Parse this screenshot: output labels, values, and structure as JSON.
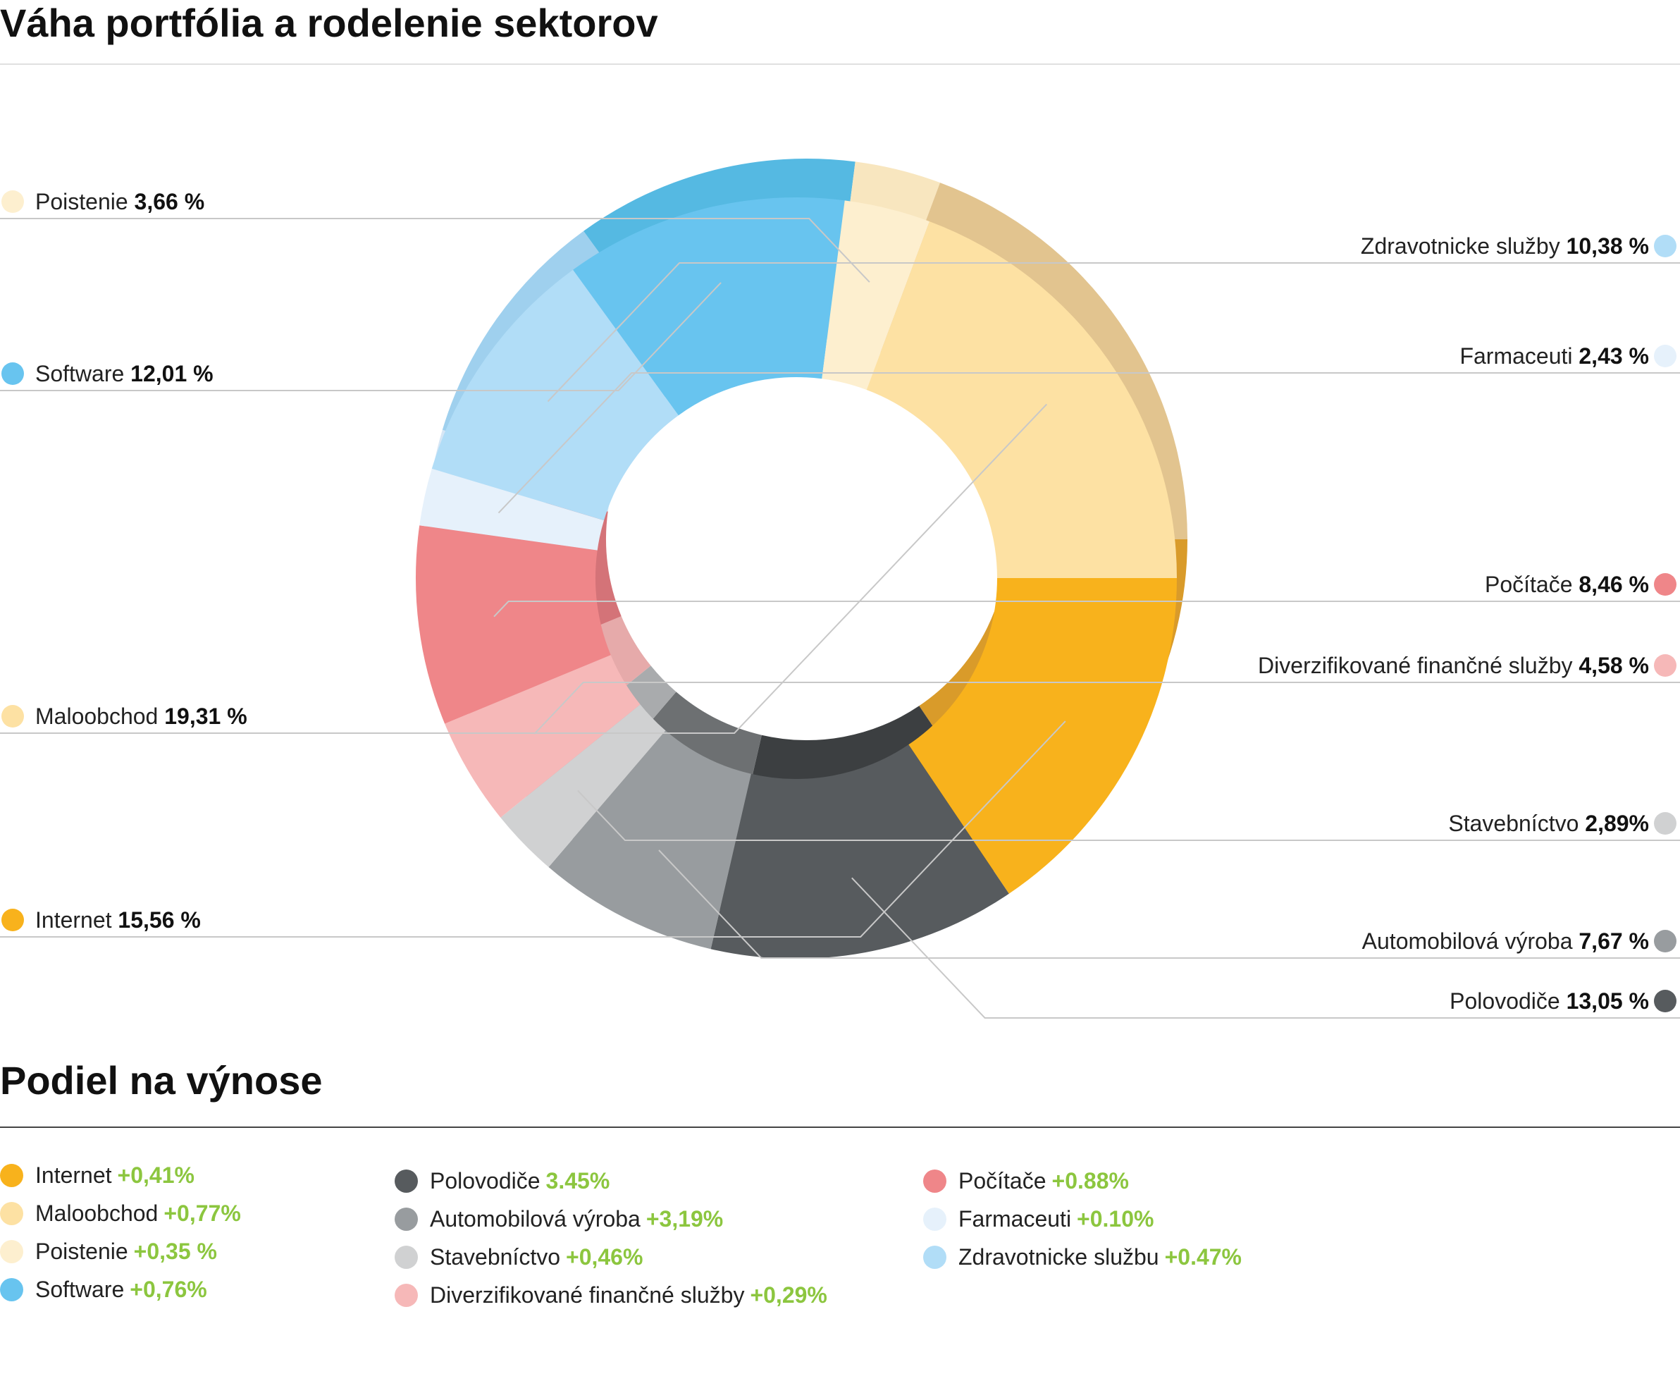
{
  "title_allocation": "Váha portfólia a rodelenie sektorov",
  "title_returns": "Podiel na výnose",
  "chart_data": {
    "type": "pie",
    "donut": true,
    "slices": [
      {
        "name": "Internet",
        "label_value": "15,56 %",
        "value": 15.56,
        "color": "#f8b21c",
        "side_color": "#d99b2a",
        "side": "left"
      },
      {
        "name": "Polovodiče",
        "label_value": "13,05 %",
        "value": 13.05,
        "color": "#575b5e",
        "side_color": "#3c3f41",
        "side": "right"
      },
      {
        "name": "Automobilová výroba",
        "label_value": "7,67 %",
        "value": 7.67,
        "color": "#989c9f",
        "side_color": "#6d7072",
        "side": "right"
      },
      {
        "name": "Stavebníctvo",
        "label_value": "2,89%",
        "value": 2.89,
        "color": "#d0d1d2",
        "side_color": "#a9abad",
        "side": "right"
      },
      {
        "name": "Diverzifikované finančné služby",
        "label_value": "4,58 %",
        "value": 4.58,
        "color": "#f6b8b8",
        "side_color": "#e6aaaa",
        "side": "right"
      },
      {
        "name": "Počítače",
        "label_value": "8,46 %",
        "value": 8.46,
        "color": "#ef8689",
        "side_color": "#d47378",
        "side": "right"
      },
      {
        "name": "Farmaceuti",
        "label_value": "2,43 %",
        "value": 2.43,
        "color": "#e6f1fb",
        "side_color": "#d6e6f5",
        "side": "right"
      },
      {
        "name": "Zdravotnicke služby",
        "label_value": "10,38 %",
        "value": 10.38,
        "color": "#b1ddf7",
        "side_color": "#9fd0ee",
        "side": "right"
      },
      {
        "name": "Software",
        "label_value": "12,01 %",
        "value": 12.01,
        "color": "#68c4ef",
        "side_color": "#55b9e2",
        "side": "left"
      },
      {
        "name": "Poistenie",
        "label_value": "3,66 %",
        "value": 3.66,
        "color": "#fdefcf",
        "side_color": "#f8e6bf",
        "side": "left"
      },
      {
        "name": "Maloobchod",
        "label_value": "19,31 %",
        "value": 19.31,
        "color": "#fde1a3",
        "side_color": "#e2c48f",
        "side": "left"
      }
    ]
  },
  "returns": {
    "columns": [
      [
        {
          "name": "Internet",
          "value": "+0,41%",
          "color": "#f8b21c"
        },
        {
          "name": "Maloobchod",
          "value": "+0,77%",
          "color": "#fde1a3"
        },
        {
          "name": "Poistenie",
          "value": "+0,35 %",
          "color": "#fdefcf"
        },
        {
          "name": "Software",
          "value": "+0,76%",
          "color": "#68c4ef"
        }
      ],
      [
        {
          "name": "Polovodiče",
          "value": "3.45%",
          "color": "#575b5e"
        },
        {
          "name": "Automobilová výroba",
          "value": "+3,19%",
          "color": "#989c9f"
        },
        {
          "name": "Stavebníctvo",
          "value": "+0,46%",
          "color": "#d0d1d2"
        },
        {
          "name": "Diverzifikované finančné služby",
          "value": "+0,29%",
          "color": "#f6b8b8"
        }
      ],
      [
        {
          "name": "Počítače",
          "value": "+0.88%",
          "color": "#ef8689"
        },
        {
          "name": "Farmaceuti",
          "value": "+0.10%",
          "color": "#e6f1fb"
        },
        {
          "name": "Zdravotnicke službu",
          "value": "+0.47%",
          "color": "#b1ddf7"
        }
      ]
    ]
  }
}
